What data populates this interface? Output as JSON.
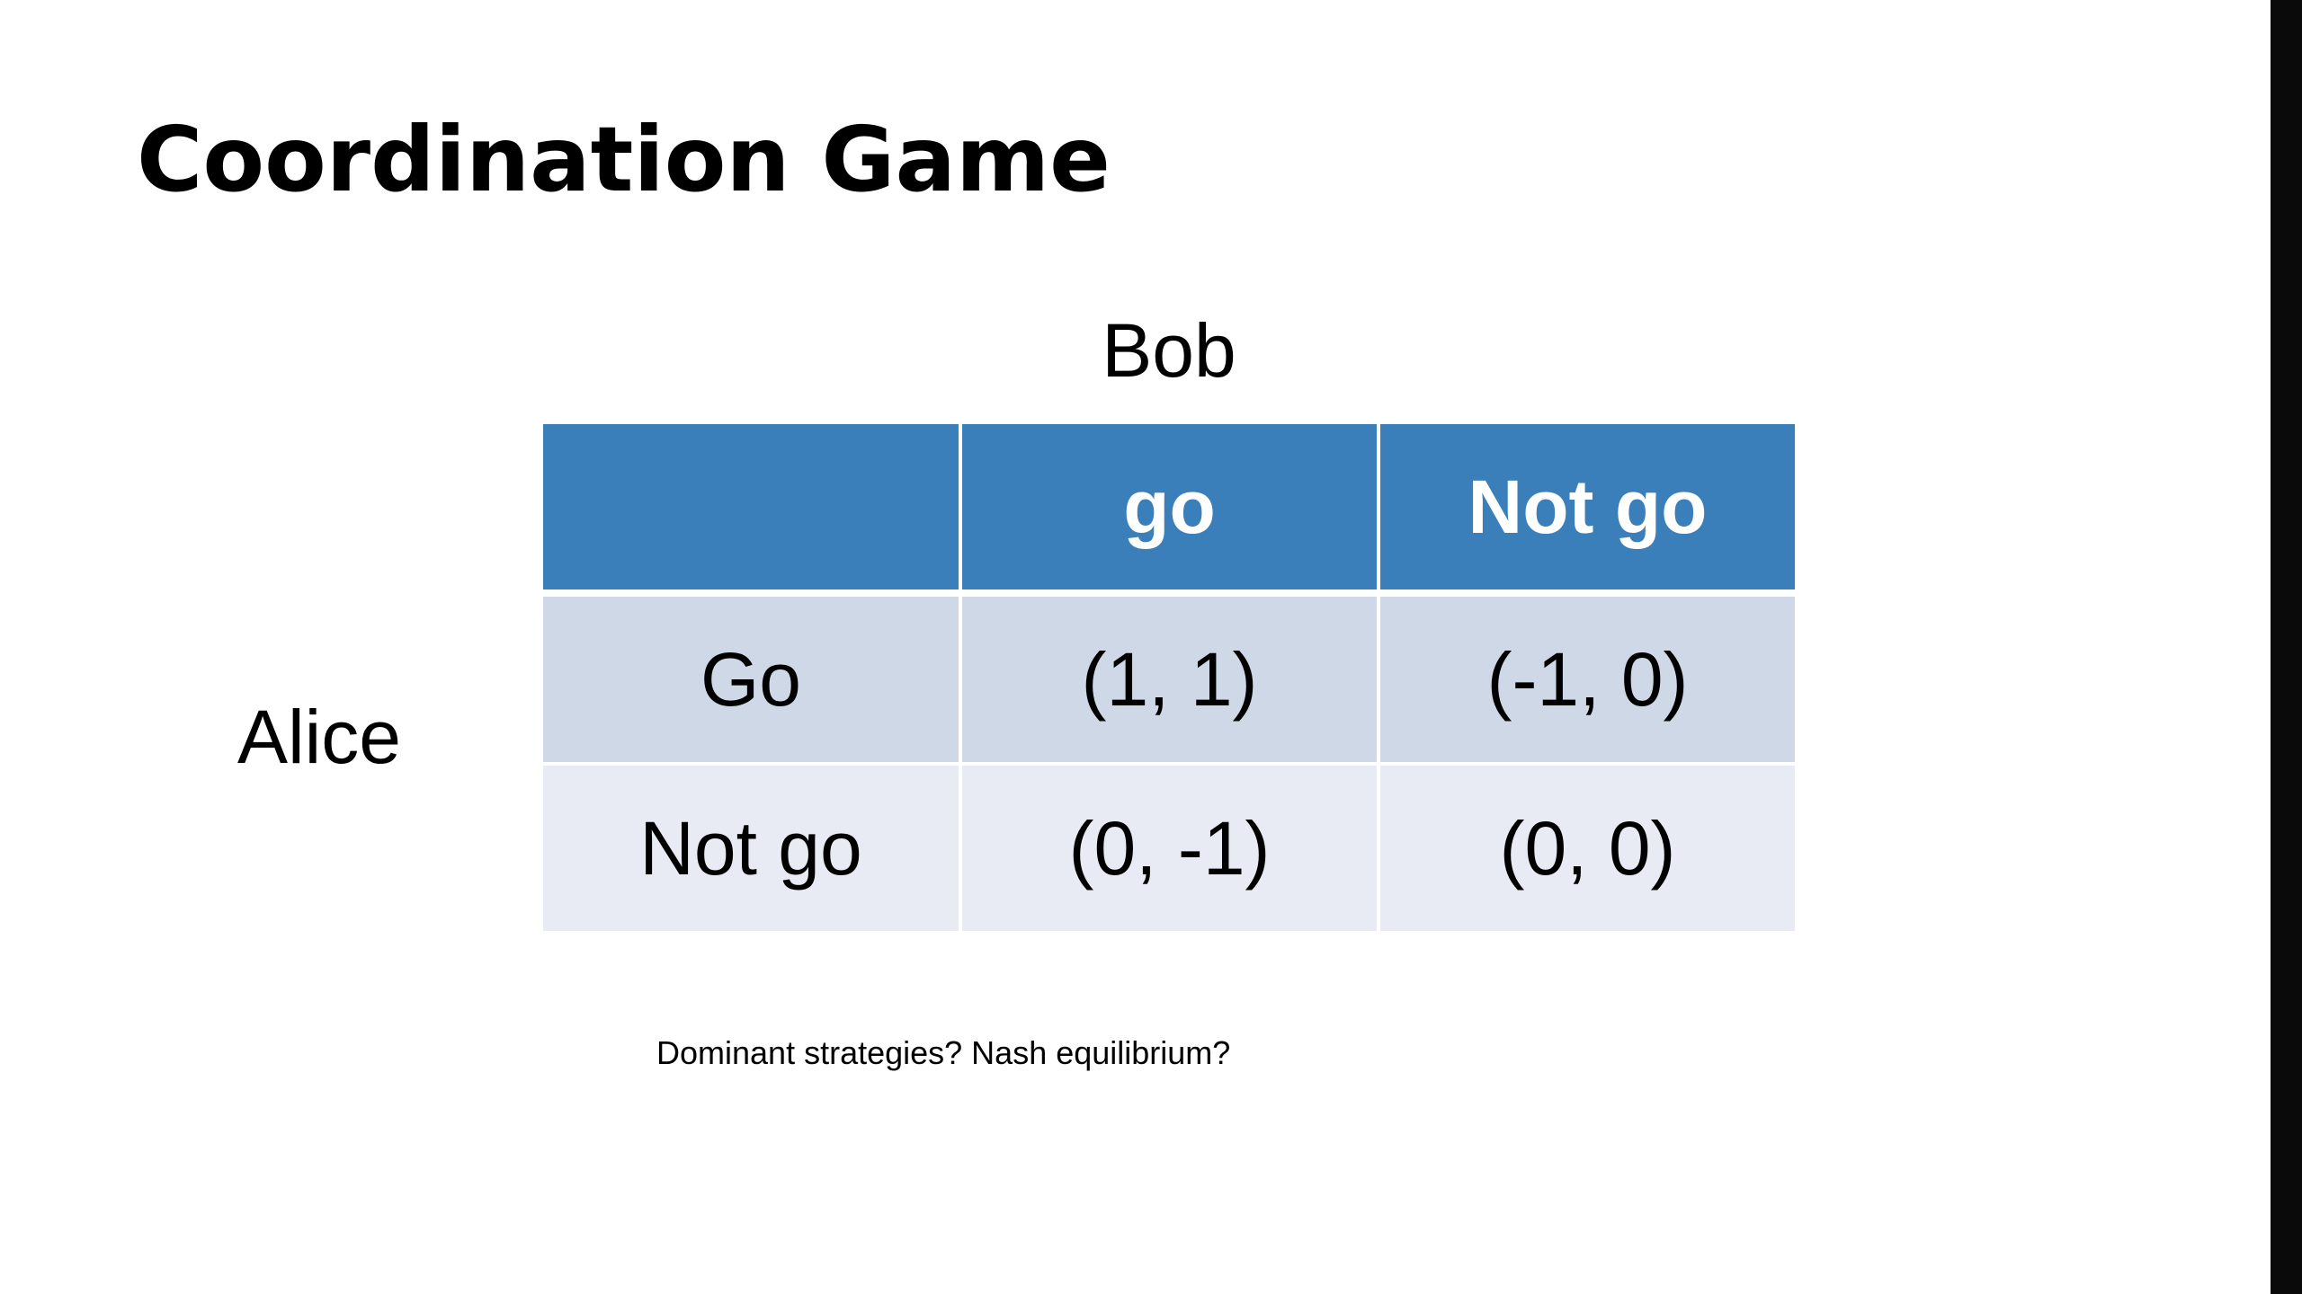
{
  "slide": {
    "title": "Coordination Game",
    "column_player": "Bob",
    "row_player": "Alice",
    "note": "Dominant strategies? Nash equilibrium?"
  },
  "table": {
    "header": [
      "",
      "go",
      "Not go"
    ],
    "rows": [
      {
        "strategy": "Go",
        "payoffs": [
          "(1, 1)",
          "(-1, 0)"
        ]
      },
      {
        "strategy": "Not go",
        "payoffs": [
          "(0, -1)",
          "(0, 0)"
        ]
      }
    ]
  },
  "colors": {
    "header_bg": "#3a7fb9",
    "row_a_bg": "#cfd8e6",
    "row_b_bg": "#e8ebf3",
    "right_edge": "#0a0a0a"
  }
}
